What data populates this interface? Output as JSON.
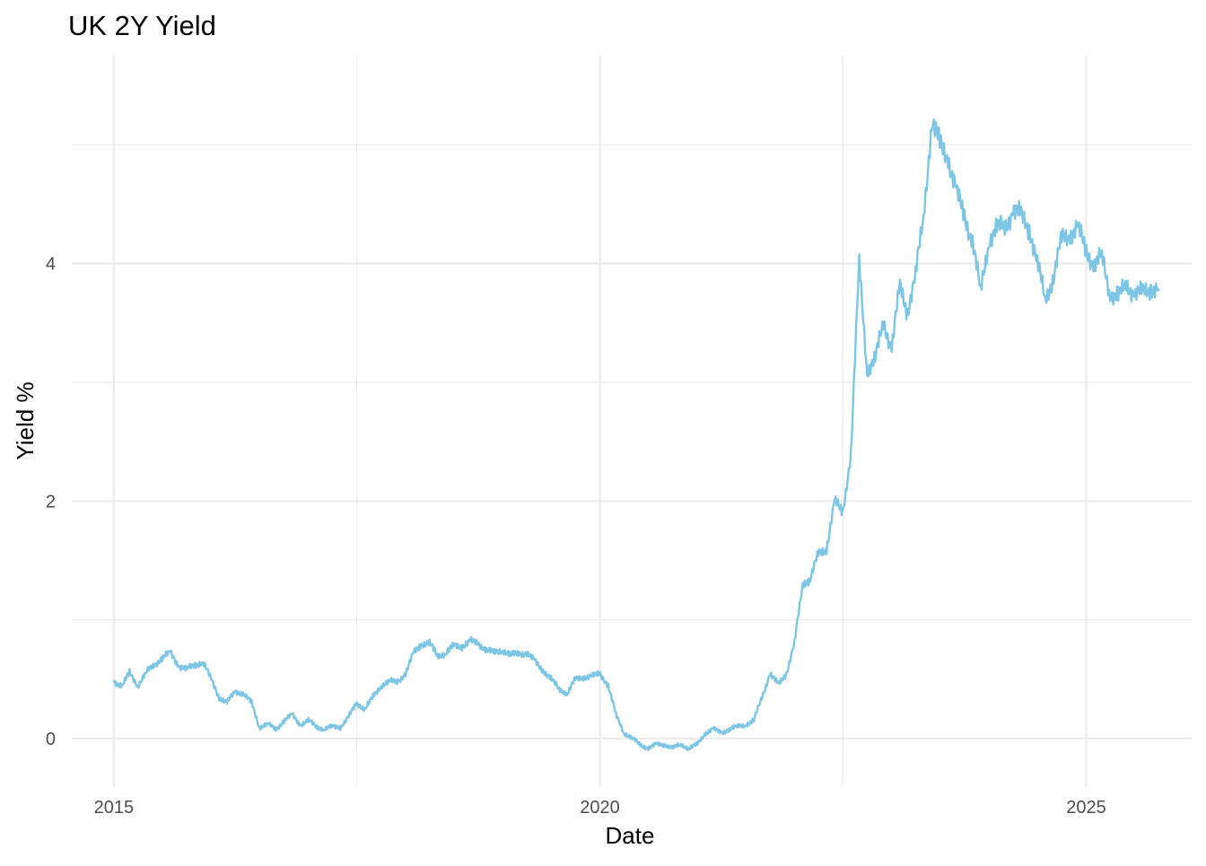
{
  "chart_data": {
    "type": "line",
    "title": "UK 2Y Yield",
    "xlabel": "Date",
    "ylabel": "Yield %",
    "x_ticks": [
      "2015",
      "2020",
      "2025"
    ],
    "y_ticks": [
      "0",
      "2",
      "4"
    ],
    "xlim": [
      "2014-07-27",
      "2026-02-01"
    ],
    "ylim": [
      -0.4,
      5.75
    ],
    "grid": true,
    "legend": "none",
    "line_color": "#7dc5e5",
    "series": [
      {
        "x": [
          "2015-01-01",
          "2015-02-01",
          "2015-03-01",
          "2015-04-01",
          "2015-05-01",
          "2015-06-01",
          "2015-07-01",
          "2015-08-01",
          "2015-09-01",
          "2015-10-01",
          "2015-11-01",
          "2015-12-01",
          "2016-01-01",
          "2016-02-01",
          "2016-03-01",
          "2016-04-01",
          "2016-05-01",
          "2016-06-01",
          "2016-07-01",
          "2016-08-01",
          "2016-09-01",
          "2016-10-01",
          "2016-11-01",
          "2016-12-01",
          "2017-01-01",
          "2017-02-01",
          "2017-03-01",
          "2017-04-01",
          "2017-05-01",
          "2017-06-01",
          "2017-07-01",
          "2017-08-01",
          "2017-09-01",
          "2017-10-01",
          "2017-11-01",
          "2017-12-01",
          "2018-01-01",
          "2018-02-01",
          "2018-03-01",
          "2018-04-01",
          "2018-05-01",
          "2018-06-01",
          "2018-07-01",
          "2018-08-01",
          "2018-09-01",
          "2018-10-01",
          "2018-11-01",
          "2018-12-01",
          "2019-01-01",
          "2019-02-01",
          "2019-03-01",
          "2019-04-01",
          "2019-05-01",
          "2019-06-01",
          "2019-07-01",
          "2019-08-01",
          "2019-09-01",
          "2019-10-01",
          "2019-11-01",
          "2019-12-01",
          "2020-01-01",
          "2020-02-01",
          "2020-03-01",
          "2020-04-01",
          "2020-05-01",
          "2020-06-01",
          "2020-07-01",
          "2020-08-01",
          "2020-09-01",
          "2020-10-01",
          "2020-11-01",
          "2020-12-01",
          "2021-01-01",
          "2021-02-01",
          "2021-03-01",
          "2021-04-01",
          "2021-05-01",
          "2021-06-01",
          "2021-07-01",
          "2021-08-01",
          "2021-09-01",
          "2021-10-01",
          "2021-11-01",
          "2021-12-01",
          "2022-01-01",
          "2022-02-01",
          "2022-03-01",
          "2022-04-01",
          "2022-05-01",
          "2022-06-01",
          "2022-07-01",
          "2022-08-01",
          "2022-09-01",
          "2022-10-01",
          "2022-11-01",
          "2022-12-01",
          "2023-01-01",
          "2023-02-01",
          "2023-03-01",
          "2023-04-01",
          "2023-05-01",
          "2023-06-01",
          "2023-07-01",
          "2023-08-01",
          "2023-09-01",
          "2023-10-01",
          "2023-11-01",
          "2023-12-01",
          "2024-01-01",
          "2024-02-01",
          "2024-03-01",
          "2024-04-01",
          "2024-05-01",
          "2024-06-01",
          "2024-07-01",
          "2024-08-01",
          "2024-09-01",
          "2024-10-01",
          "2024-11-01",
          "2024-12-01",
          "2025-01-01",
          "2025-02-01",
          "2025-03-01",
          "2025-04-01",
          "2025-05-01",
          "2025-06-01",
          "2025-07-01",
          "2025-08-01",
          "2025-09-01",
          "2025-10-01"
        ],
        "y": [
          0.48,
          0.45,
          0.55,
          0.45,
          0.55,
          0.62,
          0.68,
          0.72,
          0.62,
          0.58,
          0.62,
          0.65,
          0.5,
          0.35,
          0.3,
          0.4,
          0.38,
          0.3,
          0.1,
          0.12,
          0.08,
          0.15,
          0.2,
          0.12,
          0.15,
          0.1,
          0.08,
          0.1,
          0.1,
          0.18,
          0.3,
          0.25,
          0.35,
          0.45,
          0.48,
          0.48,
          0.55,
          0.72,
          0.8,
          0.8,
          0.7,
          0.72,
          0.78,
          0.78,
          0.82,
          0.8,
          0.75,
          0.72,
          0.75,
          0.7,
          0.72,
          0.72,
          0.65,
          0.58,
          0.5,
          0.42,
          0.38,
          0.5,
          0.52,
          0.52,
          0.55,
          0.45,
          0.2,
          0.05,
          0.0,
          -0.05,
          -0.08,
          -0.05,
          -0.05,
          -0.08,
          -0.05,
          -0.08,
          -0.05,
          0.05,
          0.08,
          0.05,
          0.08,
          0.1,
          0.12,
          0.15,
          0.35,
          0.55,
          0.45,
          0.55,
          0.8,
          1.3,
          1.35,
          1.55,
          1.6,
          2.0,
          1.9,
          2.4,
          4.0,
          3.1,
          3.2,
          3.5,
          3.3,
          3.8,
          3.6,
          3.9,
          4.4,
          5.2,
          5.0,
          4.9,
          4.6,
          4.4,
          4.2,
          3.75,
          4.2,
          4.3,
          4.3,
          4.45,
          4.4,
          4.3,
          4.0,
          3.7,
          3.9,
          4.2,
          4.25,
          4.3,
          4.1,
          4.0,
          4.05,
          3.75,
          3.72,
          3.82,
          3.75,
          3.75,
          3.8,
          3.78
        ]
      }
    ]
  }
}
